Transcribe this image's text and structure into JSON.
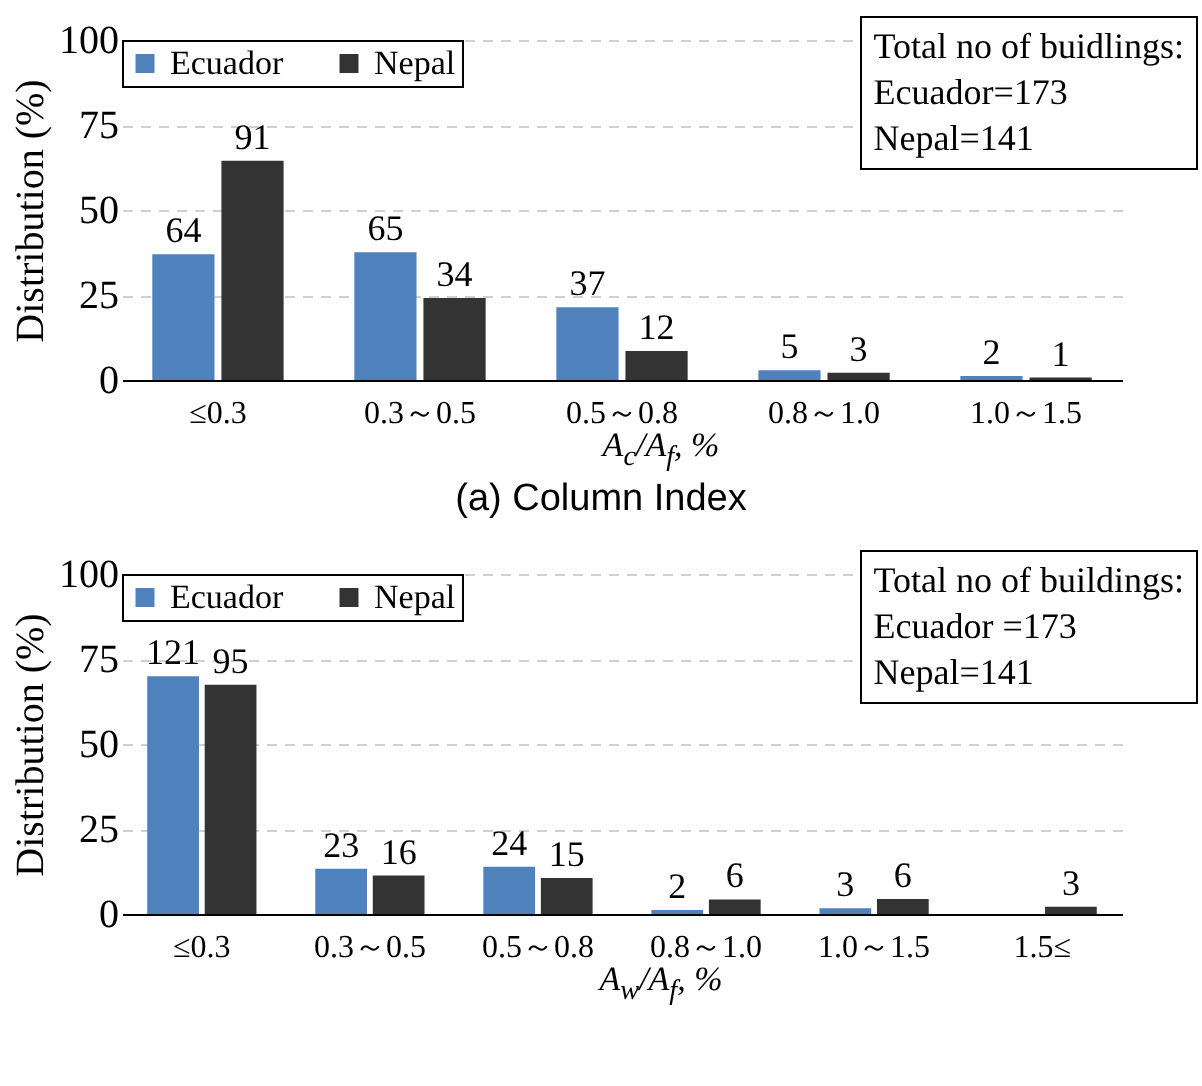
{
  "chart_data": [
    {
      "type": "bar",
      "title": "(a) Column Index",
      "xlabel": "A$_{c}$/A$_{f}$, %",
      "ylabel": "Distribution (%)",
      "categories": [
        "≤0.3",
        "0.3～0.5",
        "0.5～0.8",
        "0.8～1.0",
        "1.0～1.5"
      ],
      "series": [
        {
          "name": "Ecuador",
          "color": "#4f81bd",
          "values": [
            37,
            37.6,
            21.4,
            2.9,
            1.2
          ]
        },
        {
          "name": "Nepal",
          "color": "#333333",
          "values": [
            64.5,
            24.1,
            8.5,
            2.1,
            0.7
          ]
        }
      ],
      "ylim": [
        0,
        100
      ],
      "yticks": [
        0,
        25,
        50,
        75,
        100
      ],
      "grid": "y",
      "legend": "top left",
      "annotations": [
        "Total no of buidlings:\nEcuador=173\nNepal=141",
        {
          "text": "64",
          "x": "≤0.3",
          "y": 37
        },
        {
          "text": "91",
          "x": "≤0.3",
          "y": 64.5
        },
        {
          "text": "65",
          "x": "0.3～0.5",
          "y": 37.6
        },
        {
          "text": "34",
          "x": "0.3～0.5",
          "y": 24.1
        },
        {
          "text": "37",
          "x": "0.5～0.8",
          "y": 21.4
        },
        {
          "text": "12",
          "x": "0.5～0.8",
          "y": 8.5
        },
        {
          "text": "5",
          "x": "0.8～1.0",
          "y": 2.9
        },
        {
          "text": "3",
          "x": "0.8～1.0",
          "y": 2.1
        },
        {
          "text": "2",
          "x": "1.0～1.5",
          "y": 1.2
        },
        {
          "text": "1",
          "x": "1.0～1.5",
          "y": 0.7
        }
      ]
    },
    {
      "type": "bar",
      "xlabel": "A$_{w}$/A$_{f}$, %",
      "ylabel": "Distribution (%)",
      "categories": [
        "≤0.3",
        "0.3～0.5",
        "0.5～0.8",
        "0.8～1.0",
        "1.0～1.5",
        "1.5≤"
      ],
      "series": [
        {
          "name": "Ecuador",
          "color": "#4f81bd",
          "values": [
            69.9,
            13.3,
            13.9,
            1.2,
            1.7,
            0
          ]
        },
        {
          "name": "Nepal",
          "color": "#333333",
          "values": [
            67.4,
            11.3,
            10.6,
            4.3,
            4.4,
            2.1
          ]
        }
      ],
      "ylim": [
        0,
        100
      ],
      "yticks": [
        0,
        25,
        50,
        75,
        100
      ],
      "grid": "y",
      "legend": "top left",
      "annotations": [
        "Total no of buildings:\nEcuador =173\nNepal=141",
        {
          "text": "121",
          "x": "≤0.3",
          "y": 69.9
        },
        {
          "text": "95",
          "x": "≤0.3",
          "y": 67.4
        },
        {
          "text": "23",
          "x": "0.3～0.5",
          "y": 13.3
        },
        {
          "text": "16",
          "x": "0.3～0.5",
          "y": 11.3
        },
        {
          "text": "24",
          "x": "0.5～0.8",
          "y": 13.9
        },
        {
          "text": "15",
          "x": "0.5～0.8",
          "y": 10.6
        },
        {
          "text": "2",
          "x": "0.8～1.0",
          "y": 1.2
        },
        {
          "text": "6",
          "x": "0.8～1.0",
          "y": 4.3
        },
        {
          "text": "3",
          "x": "1.0～1.5",
          "y": 1.7
        },
        {
          "text": "6",
          "x": "1.0～1.5",
          "y": 4.4
        },
        {
          "text": "3",
          "x": "1.5≤",
          "y": 2.1
        }
      ]
    }
  ]
}
